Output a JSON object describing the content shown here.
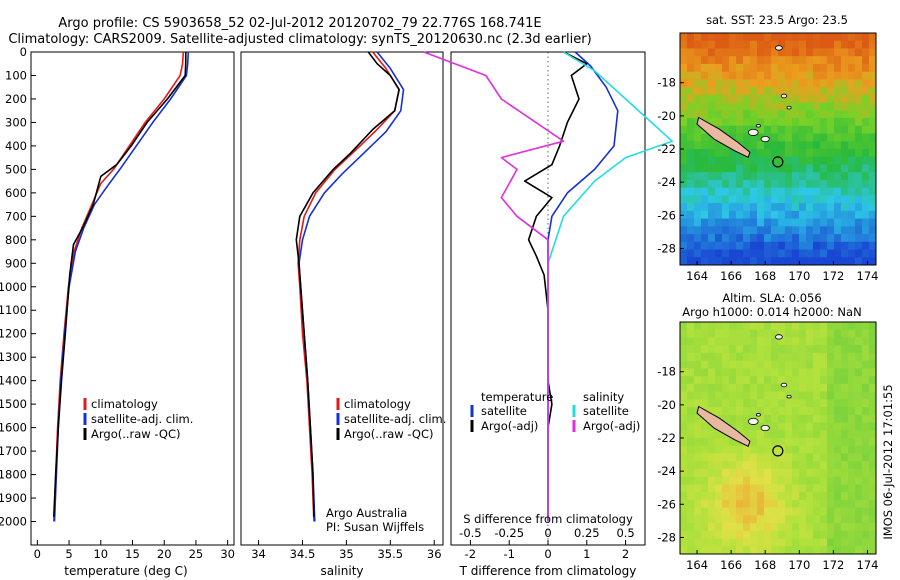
{
  "header": {
    "line1": "Argo profile: CS 5903658_52 02-Jul-2012 20120702_79 22.776S 168.741E",
    "line2": "Climatology: CARS2009. Satellite-adjusted climatology: synTS_20120630.nc (2.3d earlier)"
  },
  "colors": {
    "climatology": "#e41a1a",
    "satellite": "#1530d6",
    "argo": "#000000",
    "sal_satellite": "#22dde0",
    "sal_argo": "#e02ee0"
  },
  "chart_data": [
    {
      "type": "line",
      "id": "temperature",
      "xlabel": "temperature (deg C)",
      "ylabel": "",
      "xlim": [
        -1,
        31
      ],
      "ylim": [
        2100,
        0
      ],
      "xticks": [
        0,
        5,
        10,
        15,
        20,
        25,
        30
      ],
      "yticks": [
        0,
        100,
        200,
        300,
        400,
        500,
        600,
        700,
        800,
        900,
        1000,
        1100,
        1200,
        1300,
        1400,
        1500,
        1600,
        1700,
        1800,
        1900,
        2000
      ],
      "legend": [
        "climatology",
        "satellite-adj. clim.",
        "Argo(..raw -QC)"
      ],
      "series": [
        {
          "name": "climatology",
          "color": "climatology",
          "points": [
            [
              23.0,
              0
            ],
            [
              22.9,
              50
            ],
            [
              22.5,
              100
            ],
            [
              20.0,
              200
            ],
            [
              17.0,
              300
            ],
            [
              14.5,
              400
            ],
            [
              12.0,
              500
            ],
            [
              10.0,
              560
            ],
            [
              8.6,
              650
            ],
            [
              7.0,
              750
            ],
            [
              5.8,
              850
            ],
            [
              4.9,
              1000
            ],
            [
              4.2,
              1200
            ],
            [
              3.6,
              1400
            ],
            [
              3.2,
              1600
            ],
            [
              2.9,
              1800
            ],
            [
              2.6,
              2000
            ]
          ]
        },
        {
          "name": "satellite-adj. clim.",
          "color": "satellite",
          "points": [
            [
              23.8,
              0
            ],
            [
              23.7,
              50
            ],
            [
              23.5,
              100
            ],
            [
              21.0,
              200
            ],
            [
              18.2,
              300
            ],
            [
              15.6,
              400
            ],
            [
              13.0,
              500
            ],
            [
              10.8,
              580
            ],
            [
              9.0,
              650
            ],
            [
              7.3,
              750
            ],
            [
              6.0,
              850
            ],
            [
              5.0,
              1000
            ],
            [
              4.3,
              1200
            ],
            [
              3.7,
              1400
            ],
            [
              3.3,
              1600
            ],
            [
              3.0,
              1800
            ],
            [
              2.7,
              2000
            ]
          ]
        },
        {
          "name": "Argo(..raw -QC)",
          "color": "argo",
          "points": [
            [
              23.4,
              0
            ],
            [
              23.4,
              40
            ],
            [
              23.3,
              100
            ],
            [
              20.5,
              200
            ],
            [
              17.3,
              300
            ],
            [
              14.8,
              400
            ],
            [
              12.5,
              480
            ],
            [
              10.0,
              530
            ],
            [
              8.8,
              650
            ],
            [
              7.3,
              740
            ],
            [
              5.7,
              820
            ],
            [
              5.1,
              950
            ],
            [
              4.4,
              1200
            ],
            [
              3.8,
              1400
            ],
            [
              3.3,
              1600
            ],
            [
              2.9,
              1800
            ],
            [
              2.6,
              1980
            ]
          ]
        }
      ]
    },
    {
      "type": "line",
      "id": "salinity",
      "xlabel": "salinity",
      "xlim": [
        33.8,
        36.1
      ],
      "ylim": [
        2100,
        0
      ],
      "xticks": [
        34,
        34.5,
        35,
        35.5,
        36
      ],
      "legend": [
        "climatology",
        "satellite-adj. clim.",
        "Argo(..raw -QC)"
      ],
      "annotation": [
        "Argo Australia",
        "PI: Susan Wijffels"
      ],
      "series": [
        {
          "name": "climatology",
          "color": "climatology",
          "points": [
            [
              35.3,
              0
            ],
            [
              35.45,
              70
            ],
            [
              35.6,
              160
            ],
            [
              35.55,
              250
            ],
            [
              35.35,
              330
            ],
            [
              35.1,
              420
            ],
            [
              34.87,
              500
            ],
            [
              34.65,
              600
            ],
            [
              34.52,
              700
            ],
            [
              34.47,
              800
            ],
            [
              34.45,
              900
            ],
            [
              34.47,
              1000
            ],
            [
              34.5,
              1200
            ],
            [
              34.55,
              1400
            ],
            [
              34.58,
              1600
            ],
            [
              34.61,
              1800
            ],
            [
              34.63,
              2000
            ]
          ]
        },
        {
          "name": "satellite-adj. clim.",
          "color": "satellite",
          "points": [
            [
              35.35,
              0
            ],
            [
              35.5,
              70
            ],
            [
              35.65,
              160
            ],
            [
              35.62,
              250
            ],
            [
              35.45,
              340
            ],
            [
              35.2,
              430
            ],
            [
              34.95,
              520
            ],
            [
              34.75,
              600
            ],
            [
              34.58,
              700
            ],
            [
              34.5,
              800
            ],
            [
              34.46,
              900
            ],
            [
              34.48,
              1000
            ],
            [
              34.52,
              1200
            ],
            [
              34.56,
              1400
            ],
            [
              34.59,
              1600
            ],
            [
              34.62,
              1800
            ],
            [
              34.64,
              2000
            ]
          ]
        },
        {
          "name": "Argo(..raw -QC)",
          "color": "argo",
          "points": [
            [
              35.25,
              0
            ],
            [
              35.35,
              50
            ],
            [
              35.5,
              100
            ],
            [
              35.6,
              160
            ],
            [
              35.55,
              250
            ],
            [
              35.3,
              330
            ],
            [
              35.05,
              430
            ],
            [
              34.85,
              500
            ],
            [
              34.62,
              600
            ],
            [
              34.47,
              700
            ],
            [
              34.43,
              800
            ],
            [
              34.46,
              900
            ],
            [
              34.48,
              1000
            ],
            [
              34.52,
              1200
            ],
            [
              34.56,
              1400
            ],
            [
              34.59,
              1600
            ],
            [
              34.62,
              1800
            ],
            [
              34.63,
              1980
            ]
          ]
        }
      ]
    },
    {
      "type": "line",
      "id": "difference",
      "xlabel_top": "S difference from climatology",
      "xlabel": "T difference from climatology",
      "xlim": [
        -2.5,
        2.5
      ],
      "ylim": [
        2100,
        0
      ],
      "xticks": [
        -2,
        -1,
        0,
        1,
        2
      ],
      "xticks_s": [
        -0.5,
        -0.25,
        0,
        0.25,
        0.5
      ],
      "legend_temperature": {
        "title": "temperature",
        "items": [
          "satellite",
          "Argo(-adj)"
        ]
      },
      "legend_salinity": {
        "title": "salinity",
        "items": [
          "satellite",
          "Argo(-adj)"
        ]
      },
      "series": [
        {
          "name": "temperature satellite",
          "color": "satellite",
          "points": [
            [
              0.7,
              0
            ],
            [
              1.1,
              60
            ],
            [
              1.5,
              150
            ],
            [
              1.8,
              250
            ],
            [
              1.7,
              400
            ],
            [
              1.2,
              500
            ],
            [
              0.5,
              600
            ],
            [
              0.1,
              700
            ],
            [
              0,
              800
            ],
            [
              0,
              1000
            ],
            [
              0,
              2000
            ]
          ]
        },
        {
          "name": "temperature Argo(-adj)",
          "color": "argo",
          "points": [
            [
              0.4,
              0
            ],
            [
              1.0,
              50
            ],
            [
              0.6,
              100
            ],
            [
              0.8,
              200
            ],
            [
              0.5,
              300
            ],
            [
              0.3,
              400
            ],
            [
              0.1,
              480
            ],
            [
              -0.6,
              550
            ],
            [
              0.1,
              620
            ],
            [
              -0.3,
              700
            ],
            [
              -0.5,
              800
            ],
            [
              -0.3,
              870
            ],
            [
              -0.1,
              950
            ],
            [
              0,
              1100
            ],
            [
              0,
              1400
            ],
            [
              0.1,
              1500
            ],
            [
              0,
              1600
            ],
            [
              0,
              2000
            ]
          ]
        },
        {
          "name": "salinity satellite",
          "color": "sal_satellite",
          "points": [
            [
              0.1,
              0
            ],
            [
              0.3,
              80
            ],
            [
              0.5,
              200
            ],
            [
              0.8,
              380
            ],
            [
              0.5,
              450
            ],
            [
              0.3,
              550
            ],
            [
              0.1,
              700
            ],
            [
              0,
              900
            ],
            [
              0,
              2000
            ]
          ]
        },
        {
          "name": "salinity Argo(-adj)",
          "color": "sal_argo",
          "points": [
            [
              -0.8,
              0
            ],
            [
              -0.4,
              100
            ],
            [
              -0.3,
              200
            ],
            [
              0.1,
              380
            ],
            [
              -0.3,
              450
            ],
            [
              -0.2,
              500
            ],
            [
              -0.3,
              620
            ],
            [
              -0.2,
              700
            ],
            [
              0,
              800
            ],
            [
              0,
              2000
            ]
          ]
        }
      ]
    },
    {
      "type": "heatmap",
      "id": "sst-map",
      "title": "sat. SST: 23.5 Argo: 23.5",
      "xlim": [
        163,
        174.5
      ],
      "ylim": [
        -29,
        -15
      ],
      "xticks": [
        164,
        166,
        168,
        170,
        172,
        174
      ],
      "yticks": [
        -18,
        -20,
        -22,
        -24,
        -26,
        -28
      ],
      "argo_location": [
        168.741,
        -22.776
      ]
    },
    {
      "type": "heatmap",
      "id": "sla-map",
      "title_line1": "Altim. SLA: 0.056",
      "title_line2": "Argo h1000: 0.014 h2000: NaN",
      "xlim": [
        163,
        174.5
      ],
      "ylim": [
        -29,
        -15
      ],
      "xticks": [
        164,
        166,
        168,
        170,
        172,
        174
      ],
      "yticks": [
        -18,
        -20,
        -22,
        -24,
        -26,
        -28
      ],
      "argo_location": [
        168.741,
        -22.776
      ]
    }
  ],
  "side_label": "IMOS 06-Jul-2012 17:01:55"
}
